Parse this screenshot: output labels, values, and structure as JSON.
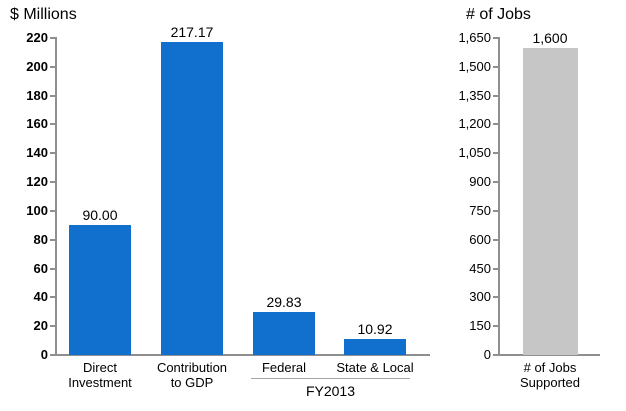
{
  "chart_data": [
    {
      "type": "bar",
      "title": "$ Millions",
      "categories": [
        "Direct\nInvestment",
        "Contribution\nto GDP",
        "Federal",
        "State & Local"
      ],
      "values": [
        90.0,
        217.17,
        29.83,
        10.92
      ],
      "value_labels": [
        "90.00",
        "217.17",
        "29.83",
        "10.92"
      ],
      "bar_color": "#1170cd",
      "ylim": [
        0,
        220
      ],
      "ytick_values": [
        0,
        20,
        40,
        60,
        80,
        100,
        120,
        140,
        160,
        180,
        200,
        220
      ],
      "ytick_labels": [
        "0",
        "20",
        "40",
        "60",
        "80",
        "100",
        "120",
        "140",
        "160",
        "180",
        "200",
        "220"
      ],
      "grid": false,
      "legend": false,
      "group": {
        "label": "FY2013",
        "start_index": 2,
        "end_index": 3
      }
    },
    {
      "type": "bar",
      "title": "# of Jobs",
      "categories": [
        "# of Jobs\nSupported"
      ],
      "values": [
        1600
      ],
      "value_labels": [
        "1,600"
      ],
      "bar_color": "#c6c6c6",
      "ylim": [
        0,
        1650
      ],
      "ytick_values": [
        0,
        150,
        300,
        450,
        600,
        750,
        900,
        1050,
        1200,
        1350,
        1500,
        1650
      ],
      "ytick_labels": [
        "0",
        "150",
        "300",
        "450",
        "600",
        "750",
        "900",
        "1,050",
        "1,200",
        "1,350",
        "1,500",
        "1,650"
      ],
      "grid": false,
      "legend": false
    }
  ],
  "colors": {
    "axis_gray": "#8f8f8f",
    "group_line_gray": "#a6a6a6",
    "blue_bar": "#1170cd",
    "gray_bar": "#c6c6c6",
    "background": "#ffffff",
    "text": "#000000"
  }
}
